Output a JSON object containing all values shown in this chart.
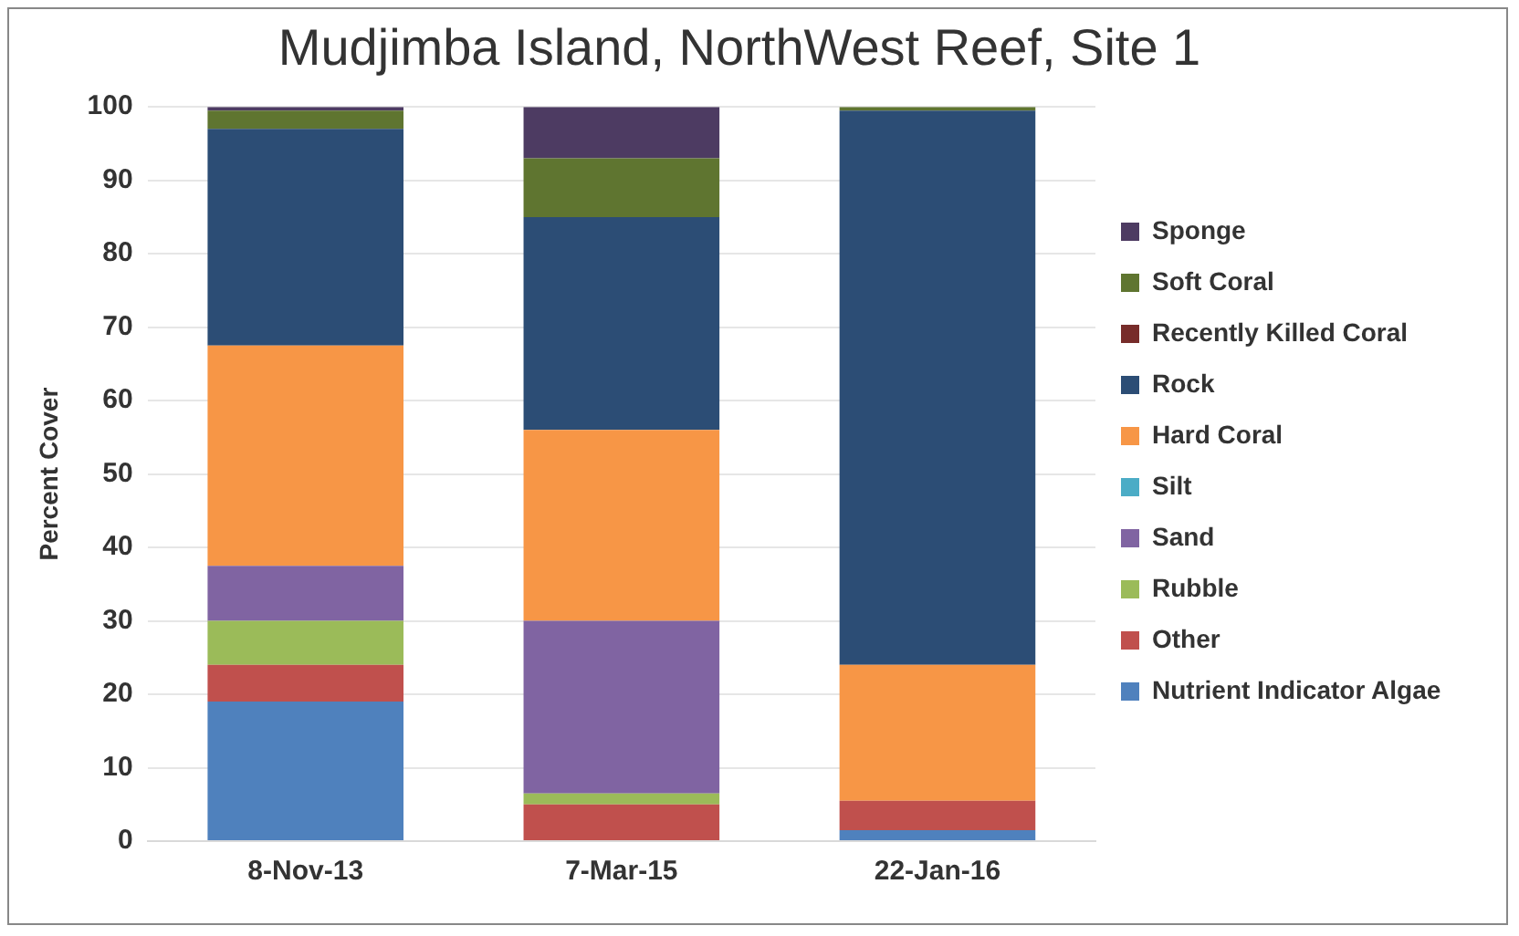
{
  "chart_data": {
    "type": "bar",
    "title": "Mudjimba Island, NorthWest Reef, Site 1",
    "ylabel": "Percent Cover",
    "categories": [
      "8-Nov-13",
      "7-Mar-15",
      "22-Jan-16"
    ],
    "stacked": true,
    "ylim": [
      0,
      100
    ],
    "yticks": [
      0,
      10,
      20,
      30,
      40,
      50,
      60,
      70,
      80,
      90,
      100
    ],
    "grid": "y",
    "legend": "right",
    "series": [
      {
        "name": "Nutrient Indicator Algae",
        "color": "#4f81bd",
        "values": [
          19,
          0,
          1.5
        ]
      },
      {
        "name": "Other",
        "color": "#c0504d",
        "values": [
          5,
          5,
          4
        ]
      },
      {
        "name": "Rubble",
        "color": "#9bbb59",
        "values": [
          6,
          1.5,
          0
        ]
      },
      {
        "name": "Sand",
        "color": "#8064a2",
        "values": [
          7.5,
          23.5,
          0
        ]
      },
      {
        "name": "Silt",
        "color": "#4bacc6",
        "values": [
          0,
          0,
          0
        ]
      },
      {
        "name": "Hard Coral",
        "color": "#f79646",
        "values": [
          30,
          26,
          18.5
        ]
      },
      {
        "name": "Rock",
        "color": "#2c4d75",
        "values": [
          29.5,
          29,
          75.5
        ]
      },
      {
        "name": "Recently Killed Coral",
        "color": "#772c2a",
        "values": [
          0,
          0,
          0
        ]
      },
      {
        "name": "Soft Coral",
        "color": "#5f7530",
        "values": [
          2.5,
          8,
          0.5
        ]
      },
      {
        "name": "Sponge",
        "color": "#4d3b62",
        "values": [
          0.5,
          7,
          0
        ]
      }
    ]
  }
}
